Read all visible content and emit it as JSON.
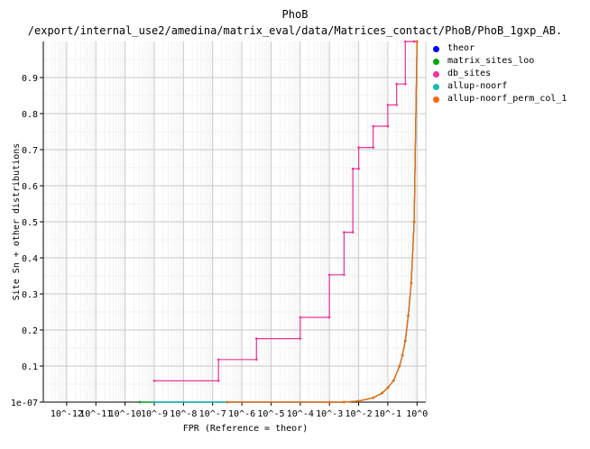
{
  "chart_data": {
    "type": "line",
    "title": "PhoB",
    "subtitle": "/export/internal_use2/amedina/matrix_eval/data/Matrices_contact/PhoB/PhoB_1gxp_AB.",
    "xlabel": "FPR (Reference = theor)",
    "ylabel": "Site Sn + other distributions",
    "x_scale": "log",
    "x_ticks": [
      "10^-12",
      "10^-11",
      "10^-10",
      "10^-9",
      "10^-8",
      "10^-7",
      "10^-6",
      "10^-5",
      "10^-4",
      "10^-3",
      "10^-2",
      "10^-1",
      "10^0"
    ],
    "y_ticks": [
      "1e-07",
      "0.1",
      "0.2",
      "0.3",
      "0.4",
      "0.5",
      "0.6",
      "0.7",
      "0.8",
      "0.9"
    ],
    "y_tick_values": [
      0.0,
      0.1,
      0.2,
      0.3,
      0.4,
      0.5,
      0.6,
      0.7,
      0.8,
      0.9
    ],
    "xlim_log10": [
      -12.8,
      0.3
    ],
    "ylim": [
      0,
      1
    ],
    "grid": true,
    "legend_position": "right",
    "series": [
      {
        "name": "theor",
        "color": "#0000ff",
        "x_log10": [
          -9.5,
          -3.0,
          -2.5,
          -2.0,
          -1.5,
          -1.2,
          -1.0,
          -0.8,
          -0.6,
          -0.5,
          -0.4,
          -0.3,
          -0.2,
          -0.1,
          0.0
        ],
        "y": [
          0.0,
          0.0,
          0.0,
          0.003,
          0.012,
          0.025,
          0.04,
          0.06,
          0.1,
          0.13,
          0.17,
          0.24,
          0.33,
          0.5,
          1.0
        ]
      },
      {
        "name": "matrix_sites_loo",
        "color": "#00aa00",
        "x_log10": [
          -9.5,
          -3.0,
          -2.5,
          -2.0,
          -1.5,
          -1.2,
          -1.0,
          -0.8,
          -0.6,
          -0.5,
          -0.4,
          -0.3,
          -0.2,
          -0.1,
          0.0
        ],
        "y": [
          0.0,
          0.0,
          0.0,
          0.003,
          0.012,
          0.025,
          0.04,
          0.06,
          0.1,
          0.13,
          0.17,
          0.24,
          0.33,
          0.5,
          1.0
        ]
      },
      {
        "name": "db_sites",
        "color": "#ee3399",
        "x_log10": [
          -9.0,
          -6.8,
          -6.8,
          -5.5,
          -5.5,
          -4.0,
          -4.0,
          -3.0,
          -3.0,
          -2.5,
          -2.5,
          -2.2,
          -2.2,
          -2.0,
          -2.0,
          -1.5,
          -1.5,
          -1.0,
          -1.0,
          -0.7,
          -0.7,
          -0.4,
          -0.4,
          -0.1,
          -0.1,
          0.0,
          0.0
        ],
        "y": [
          0.059,
          0.059,
          0.118,
          0.118,
          0.176,
          0.176,
          0.235,
          0.235,
          0.353,
          0.353,
          0.471,
          0.471,
          0.647,
          0.647,
          0.706,
          0.706,
          0.765,
          0.765,
          0.824,
          0.824,
          0.882,
          0.882,
          1.0,
          1.0,
          1.0,
          1.0,
          1.0
        ]
      },
      {
        "name": "allup-noorf",
        "color": "#11bbbb",
        "x_log10": [
          -9.0,
          -6.5
        ],
        "y": [
          0.0,
          0.0
        ]
      },
      {
        "name": "allup-noorf_perm_col_1",
        "color": "#ff6600",
        "x_log10": [
          -6.5,
          -3.0,
          -2.5,
          -2.0,
          -1.5,
          -1.2,
          -1.0,
          -0.8,
          -0.6,
          -0.5,
          -0.4,
          -0.3,
          -0.2,
          -0.1,
          0.0
        ],
        "y": [
          0.0,
          0.0,
          0.0,
          0.003,
          0.012,
          0.025,
          0.04,
          0.06,
          0.1,
          0.13,
          0.17,
          0.24,
          0.33,
          0.5,
          1.0
        ]
      }
    ]
  }
}
